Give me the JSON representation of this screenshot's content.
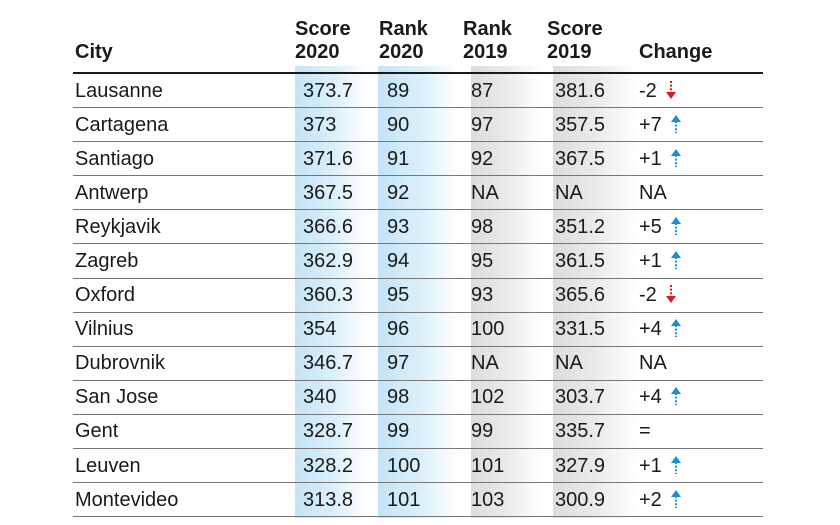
{
  "headers": {
    "city": "City",
    "score2020": [
      "Score",
      "2020"
    ],
    "rank2020": [
      "Rank",
      "2020"
    ],
    "rank2019": [
      "Rank",
      "2019"
    ],
    "score2019": [
      "Score",
      "2019"
    ],
    "change": "Change"
  },
  "colors": {
    "current_band": "#c4e4f7",
    "previous_band": "#dcdcdc",
    "up_arrow": "#1a8fd6",
    "down_arrow": "#d42020"
  },
  "chart_data": {
    "type": "table",
    "columns": [
      "City",
      "Score 2020",
      "Rank 2020",
      "Rank 2019",
      "Score 2019",
      "Change"
    ],
    "rows": [
      {
        "city": "Lausanne",
        "score2020": "373.7",
        "rank2020": "89",
        "rank2019": "87",
        "score2019": "381.6",
        "change": "-2",
        "dir": "down"
      },
      {
        "city": "Cartagena",
        "score2020": "373",
        "rank2020": "90",
        "rank2019": "97",
        "score2019": "357.5",
        "change": "+7",
        "dir": "up"
      },
      {
        "city": "Santiago",
        "score2020": "371.6",
        "rank2020": "91",
        "rank2019": "92",
        "score2019": "367.5",
        "change": "+1",
        "dir": "up"
      },
      {
        "city": "Antwerp",
        "score2020": "367.5",
        "rank2020": "92",
        "rank2019": "NA",
        "score2019": "NA",
        "change": "NA",
        "dir": "none"
      },
      {
        "city": "Reykjavik",
        "score2020": "366.6",
        "rank2020": "93",
        "rank2019": "98",
        "score2019": "351.2",
        "change": "+5",
        "dir": "up"
      },
      {
        "city": "Zagreb",
        "score2020": "362.9",
        "rank2020": "94",
        "rank2019": "95",
        "score2019": "361.5",
        "change": "+1",
        "dir": "up"
      },
      {
        "city": "Oxford",
        "score2020": "360.3",
        "rank2020": "95",
        "rank2019": "93",
        "score2019": "365.6",
        "change": "-2",
        "dir": "down"
      },
      {
        "city": "Vilnius",
        "score2020": "354",
        "rank2020": "96",
        "rank2019": "100",
        "score2019": "331.5",
        "change": "+4",
        "dir": "up"
      },
      {
        "city": "Dubrovnik",
        "score2020": "346.7",
        "rank2020": "97",
        "rank2019": "NA",
        "score2019": "NA",
        "change": "NA",
        "dir": "none"
      },
      {
        "city": "San Jose",
        "score2020": "340",
        "rank2020": "98",
        "rank2019": "102",
        "score2019": "303.7",
        "change": "+4",
        "dir": "up"
      },
      {
        "city": "Gent",
        "score2020": "328.7",
        "rank2020": "99",
        "rank2019": "99",
        "score2019": "335.7",
        "change": "=",
        "dir": "none"
      },
      {
        "city": "Leuven",
        "score2020": "328.2",
        "rank2020": "100",
        "rank2019": "101",
        "score2019": "327.9",
        "change": "+1",
        "dir": "up"
      },
      {
        "city": "Montevideo",
        "score2020": "313.8",
        "rank2020": "101",
        "rank2019": "103",
        "score2019": "300.9",
        "change": "+2",
        "dir": "up"
      }
    ]
  }
}
